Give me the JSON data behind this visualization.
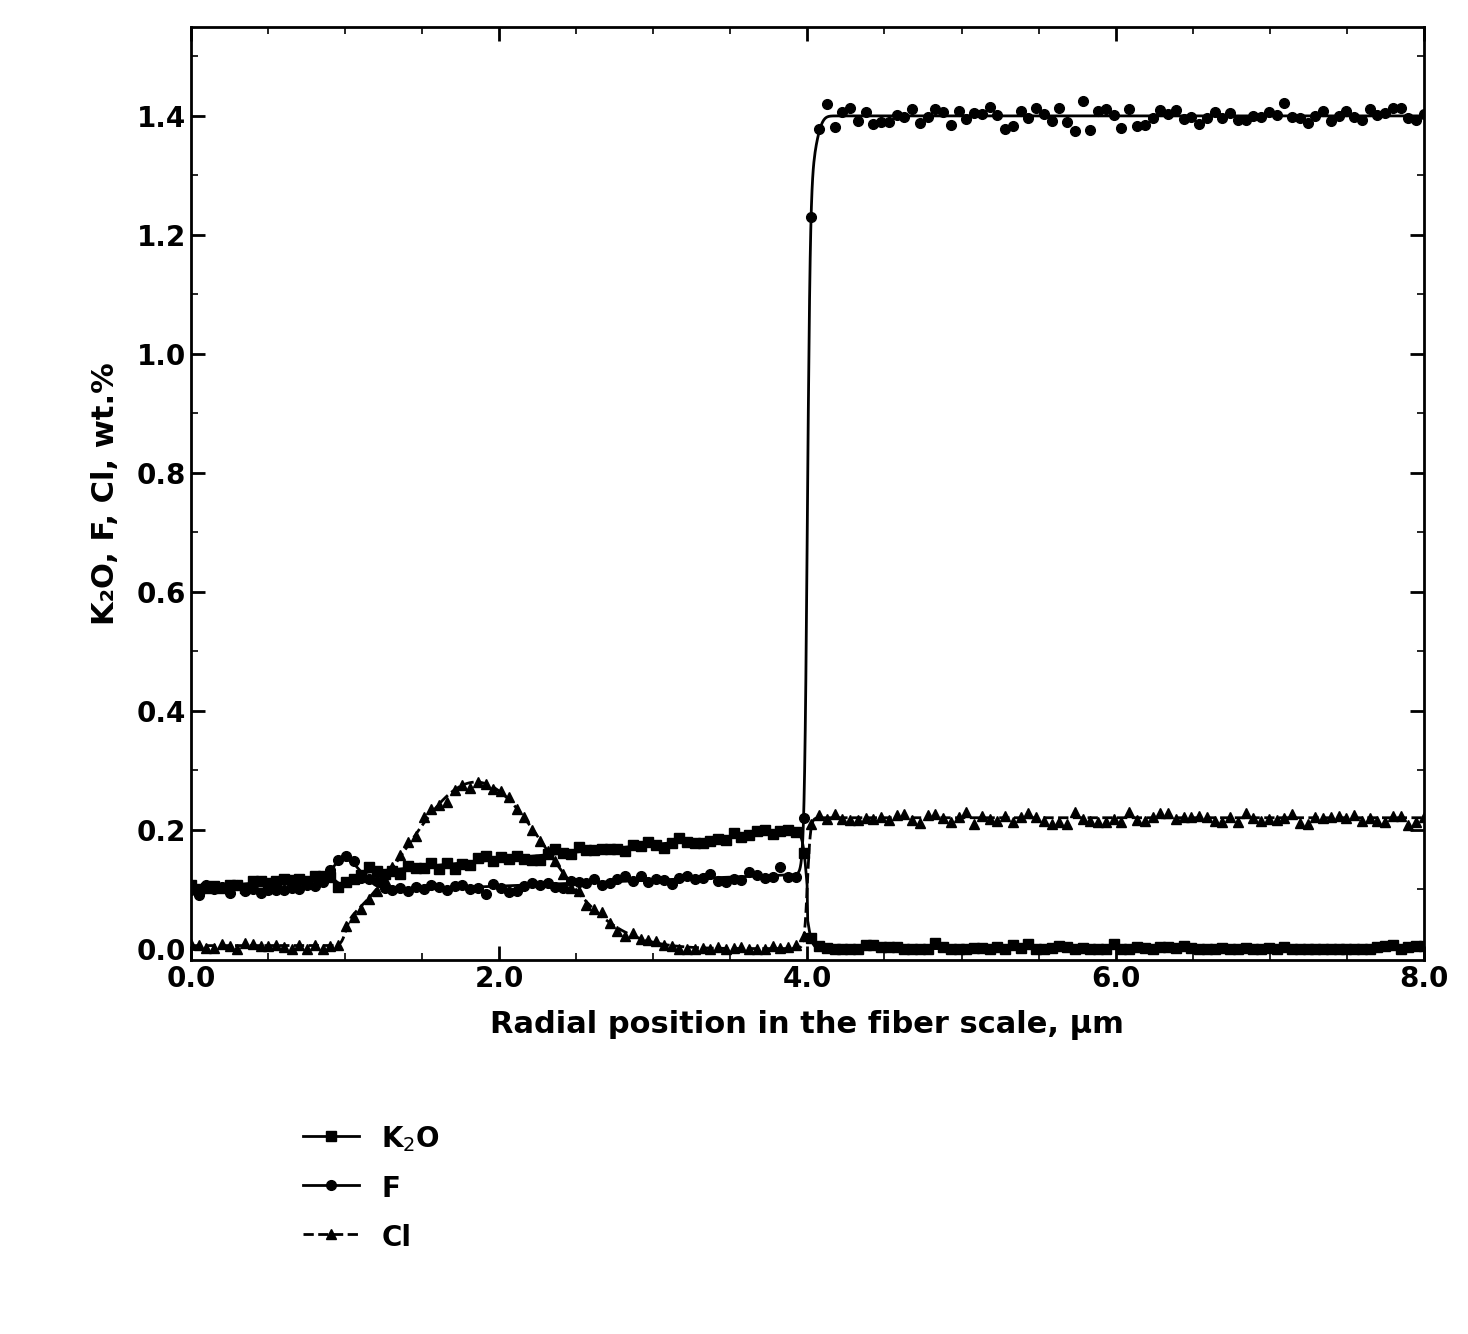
{
  "xlabel": "Radial position in the fiber scale, μm",
  "ylabel": "K₂O, F, Cl, wt.%",
  "xlim": [
    0.0,
    8.0
  ],
  "ylim": [
    -0.02,
    1.55
  ],
  "xticks": [
    0.0,
    2.0,
    4.0,
    6.0,
    8.0
  ],
  "yticks": [
    0.0,
    0.2,
    0.4,
    0.6,
    0.8,
    1.0,
    1.2,
    1.4
  ],
  "line_color": "#000000",
  "background_color": "#ffffff",
  "axis_fontsize": 22,
  "tick_fontsize": 20,
  "legend_fontsize": 20
}
